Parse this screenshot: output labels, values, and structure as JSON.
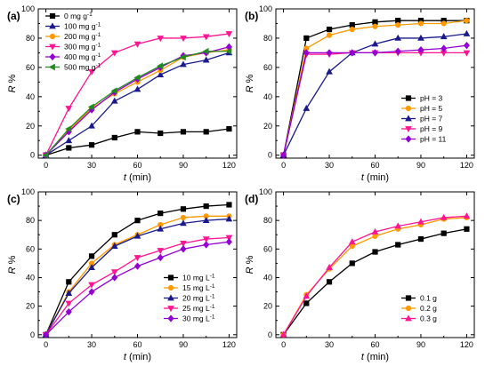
{
  "chart_data": [
    {
      "type": "line",
      "panel_label": "(a)",
      "xlabel_var": "t",
      "xlabel_unit": " (min)",
      "ylabel_var": "R",
      "ylabel_unit": " %",
      "xlim": [
        -5,
        125
      ],
      "ylim": [
        -2,
        100
      ],
      "xticks": [
        0,
        30,
        60,
        90,
        120
      ],
      "yticks": [
        0,
        20,
        40,
        60,
        80,
        100
      ],
      "legend_position": "top-left",
      "x": [
        0,
        15,
        30,
        45,
        60,
        75,
        90,
        105,
        120
      ],
      "series": [
        {
          "name": "0 mg g",
          "sup": "-1",
          "color": "#000000",
          "marker": "square",
          "values": [
            0,
            5,
            7,
            12,
            16,
            15,
            16,
            16,
            18
          ]
        },
        {
          "name": "100 mg g",
          "sup": "-1",
          "color": "#1a1a8c",
          "marker": "triangle-up",
          "values": [
            0,
            10,
            20,
            37,
            45,
            55,
            62,
            65,
            70
          ]
        },
        {
          "name": "200 mg g",
          "sup": "-1",
          "color": "#ff9900",
          "marker": "circle",
          "values": [
            0,
            17,
            32,
            42,
            50,
            58,
            67,
            70,
            72
          ]
        },
        {
          "name": "300 mg g",
          "sup": "-1",
          "color": "#ff1493",
          "marker": "triangle-down",
          "values": [
            0,
            32,
            57,
            70,
            76,
            80,
            80,
            81,
            83
          ]
        },
        {
          "name": "400 mg g",
          "sup": "-1",
          "color": "#9400d3",
          "marker": "diamond",
          "values": [
            0,
            16,
            31,
            43,
            52,
            60,
            68,
            70,
            74
          ]
        },
        {
          "name": "500 mg g",
          "sup": "-1",
          "color": "#228b22",
          "marker": "triangle-left",
          "values": [
            0,
            18,
            33,
            44,
            53,
            61,
            67,
            71,
            71
          ]
        }
      ]
    },
    {
      "type": "line",
      "panel_label": "(b)",
      "xlabel_var": "t",
      "xlabel_unit": " (min)",
      "ylabel_var": "R",
      "ylabel_unit": " %",
      "xlim": [
        -5,
        125
      ],
      "ylim": [
        -2,
        100
      ],
      "xticks": [
        0,
        30,
        60,
        90,
        120
      ],
      "yticks": [
        0,
        20,
        40,
        60,
        80,
        100
      ],
      "legend_position": "bottom-right",
      "x": [
        0,
        15,
        30,
        45,
        60,
        75,
        90,
        105,
        120
      ],
      "series": [
        {
          "name": "pH = 3",
          "sup": "",
          "color": "#000000",
          "marker": "square",
          "values": [
            0,
            80,
            86,
            89,
            91,
            92,
            92,
            92,
            92
          ]
        },
        {
          "name": "pH = 5",
          "sup": "",
          "color": "#ff9900",
          "marker": "circle",
          "values": [
            0,
            73,
            82,
            86,
            88,
            89,
            90,
            90,
            92
          ]
        },
        {
          "name": "pH = 7",
          "sup": "",
          "color": "#1a1a8c",
          "marker": "triangle-up",
          "values": [
            0,
            32,
            57,
            70,
            76,
            80,
            80,
            81,
            83
          ]
        },
        {
          "name": "pH = 9",
          "sup": "",
          "color": "#ff1493",
          "marker": "triangle-down",
          "values": [
            0,
            69,
            69,
            70,
            70,
            70,
            70,
            70,
            70
          ]
        },
        {
          "name": "pH = 11",
          "sup": "",
          "color": "#9400d3",
          "marker": "diamond",
          "values": [
            0,
            70,
            70,
            70,
            70,
            71,
            72,
            73,
            75
          ]
        }
      ]
    },
    {
      "type": "line",
      "panel_label": "(c)",
      "xlabel_var": "t",
      "xlabel_unit": " (min)",
      "ylabel_var": "R",
      "ylabel_unit": " %",
      "xlim": [
        -5,
        125
      ],
      "ylim": [
        -2,
        100
      ],
      "xticks": [
        0,
        30,
        60,
        90,
        120
      ],
      "yticks": [
        0,
        20,
        40,
        60,
        80,
        100
      ],
      "legend_position": "bottom-right",
      "x": [
        0,
        15,
        30,
        45,
        60,
        75,
        90,
        105,
        120
      ],
      "series": [
        {
          "name": "10 mg L",
          "sup": "-1",
          "color": "#000000",
          "marker": "square",
          "values": [
            0,
            37,
            55,
            70,
            80,
            85,
            88,
            90,
            91
          ]
        },
        {
          "name": "15 mg L",
          "sup": "-1",
          "color": "#ff9900",
          "marker": "circle",
          "values": [
            0,
            30,
            50,
            63,
            70,
            77,
            82,
            83,
            83
          ]
        },
        {
          "name": "20 mg L",
          "sup": "-1",
          "color": "#1a1a8c",
          "marker": "triangle-up",
          "values": [
            0,
            29,
            47,
            62,
            69,
            74,
            78,
            80,
            81
          ]
        },
        {
          "name": "25 mg L",
          "sup": "-1",
          "color": "#ff1493",
          "marker": "triangle-down",
          "values": [
            0,
            22,
            35,
            44,
            54,
            59,
            64,
            67,
            68
          ]
        },
        {
          "name": "30 mg L",
          "sup": "-1",
          "color": "#9400d3",
          "marker": "diamond",
          "values": [
            0,
            16,
            30,
            40,
            48,
            54,
            60,
            63,
            65
          ]
        }
      ]
    },
    {
      "type": "line",
      "panel_label": "(d)",
      "xlabel_var": "t",
      "xlabel_unit": " (min)",
      "ylabel_var": "R",
      "ylabel_unit": " %",
      "xlim": [
        -5,
        125
      ],
      "ylim": [
        -2,
        100
      ],
      "xticks": [
        0,
        30,
        60,
        90,
        120
      ],
      "yticks": [
        0,
        20,
        40,
        60,
        80,
        100
      ],
      "legend_position": "bottom-right",
      "x": [
        0,
        15,
        30,
        45,
        60,
        75,
        90,
        105,
        120
      ],
      "series": [
        {
          "name": "0.1 g",
          "sup": "",
          "color": "#000000",
          "marker": "square",
          "values": [
            0,
            22,
            37,
            50,
            58,
            63,
            67,
            71,
            74
          ]
        },
        {
          "name": "0.2 g",
          "sup": "",
          "color": "#ff9900",
          "marker": "circle",
          "values": [
            0,
            28,
            46,
            62,
            69,
            74,
            77,
            81,
            82
          ]
        },
        {
          "name": "0.3 g",
          "sup": "",
          "color": "#ff1493",
          "marker": "triangle-up",
          "values": [
            0,
            27,
            47,
            65,
            72,
            76,
            79,
            82,
            83
          ]
        }
      ]
    }
  ]
}
